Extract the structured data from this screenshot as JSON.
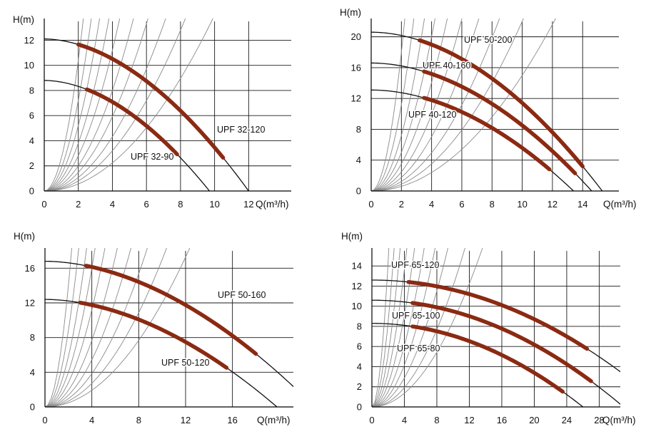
{
  "chart_data": [
    {
      "type": "line",
      "xlabel": "Q(m³/h)",
      "ylabel": "H(m)",
      "xlim": [
        0,
        14.5
      ],
      "ylim": [
        0,
        13.5
      ],
      "xticks": [
        0,
        2,
        4,
        6,
        8,
        10,
        12
      ],
      "yticks": [
        0,
        2,
        4,
        6,
        8,
        10,
        12
      ],
      "x_tick_labels": [
        "0",
        "2",
        "4",
        "6",
        "8",
        "10",
        "12"
      ],
      "y_tick_labels": [
        "0",
        "2",
        "4",
        "6",
        "8",
        "10",
        "12"
      ],
      "grid": true,
      "system_curve_slopes": [
        2.6,
        1.8,
        1.3,
        0.95,
        0.7,
        0.5,
        0.37,
        0.27,
        0.2,
        0.14
      ],
      "series": [
        {
          "name": "UPF 32-120",
          "h0": 12.1,
          "qmax": 12.0,
          "exp": 1.85,
          "op": [
            2.0,
            10.5
          ],
          "label": "UPF 32-120"
        },
        {
          "name": "UPF 32-90",
          "h0": 8.8,
          "qmax": 9.7,
          "exp": 1.85,
          "op": [
            2.5,
            7.8
          ],
          "label": "UPF 32-90"
        }
      ]
    },
    {
      "type": "line",
      "xlabel": "Q(m³/h)",
      "ylabel": "H(m)",
      "xlim": [
        0,
        16.4
      ],
      "ylim": [
        0,
        22
      ],
      "xticks": [
        0,
        2,
        4,
        6,
        8,
        10,
        12,
        14
      ],
      "yticks": [
        0,
        4,
        8,
        12,
        16,
        20
      ],
      "x_tick_labels": [
        "0",
        "2",
        "4",
        "6",
        "8",
        "10",
        "12",
        "14"
      ],
      "y_tick_labels": [
        "0",
        "4",
        "8",
        "12",
        "16",
        "20"
      ],
      "grid": true,
      "system_curve_slopes": [
        4.5,
        2.8,
        1.8,
        1.25,
        0.88,
        0.62,
        0.44,
        0.31,
        0.22,
        0.15
      ],
      "series": [
        {
          "name": "UPF 50-200",
          "h0": 20.6,
          "qmax": 15.3,
          "exp": 1.9,
          "op": [
            3.2,
            14.0
          ],
          "label": "UPF 50-200"
        },
        {
          "name": "UPF 40-160",
          "h0": 16.6,
          "qmax": 14.6,
          "exp": 1.9,
          "op": [
            3.5,
            13.5
          ],
          "label": "UPF 40-160"
        },
        {
          "name": "UPF 40-120",
          "h0": 13.1,
          "qmax": 13.4,
          "exp": 1.9,
          "op": [
            3.5,
            11.8
          ],
          "label": "UPF 40-120"
        }
      ]
    },
    {
      "type": "line",
      "xlabel": "Q(m³/h)",
      "ylabel": "H(m)",
      "xlim": [
        0,
        21.2
      ],
      "ylim": [
        0,
        18
      ],
      "xticks": [
        0,
        4,
        8,
        12,
        16
      ],
      "yticks": [
        0,
        4,
        8,
        12,
        16
      ],
      "x_tick_labels": [
        "0",
        "4",
        "8",
        "12",
        "16"
      ],
      "y_tick_labels": [
        "0",
        "4",
        "8",
        "12",
        "16"
      ],
      "grid": true,
      "system_curve_slopes": [
        3.5,
        2.2,
        1.45,
        1.0,
        0.7,
        0.48,
        0.34,
        0.24,
        0.17,
        0.12
      ],
      "series": [
        {
          "name": "UPF 50-160",
          "h0": 16.8,
          "qmax": 23.0,
          "exp": 1.85,
          "op": [
            3.5,
            18.0
          ],
          "label": "UPF 50-160"
        },
        {
          "name": "UPF 50-120",
          "h0": 12.4,
          "qmax": 19.8,
          "exp": 1.85,
          "op": [
            3.0,
            15.5
          ],
          "label": "UPF 50-120"
        }
      ]
    },
    {
      "type": "line",
      "xlabel": "Q(m³/h)",
      "ylabel": "H(m)",
      "xlim": [
        0,
        30.6
      ],
      "ylim": [
        0,
        15.5
      ],
      "xticks": [
        0,
        4,
        8,
        12,
        16,
        20,
        24,
        28
      ],
      "yticks": [
        0,
        2,
        4,
        6,
        8,
        10,
        12,
        14
      ],
      "x_tick_labels": [
        "0",
        "4",
        "8",
        "12",
        "16",
        "20",
        "24",
        "28"
      ],
      "y_tick_labels": [
        "0",
        "2",
        "4",
        "6",
        "8",
        "10",
        "12",
        "14"
      ],
      "grid": true,
      "system_curve_slopes": [
        3.6,
        2.1,
        1.3,
        0.85,
        0.57,
        0.38,
        0.26,
        0.18,
        0.12,
        0.085
      ],
      "series": [
        {
          "name": "UPF 65-120",
          "h0": 12.6,
          "qmax": 36.0,
          "exp": 2.0,
          "op": [
            4.5,
            26.5
          ],
          "label": "UPF 65-120"
        },
        {
          "name": "UPF 65-100",
          "h0": 10.6,
          "qmax": 31.0,
          "exp": 2.0,
          "op": [
            5.0,
            27.0
          ],
          "label": "UPF 65-100"
        },
        {
          "name": "UPF 65-80",
          "h0": 8.3,
          "qmax": 26.0,
          "exp": 2.0,
          "op": [
            5.0,
            23.5
          ],
          "label": "UPF 65-80"
        }
      ]
    }
  ]
}
